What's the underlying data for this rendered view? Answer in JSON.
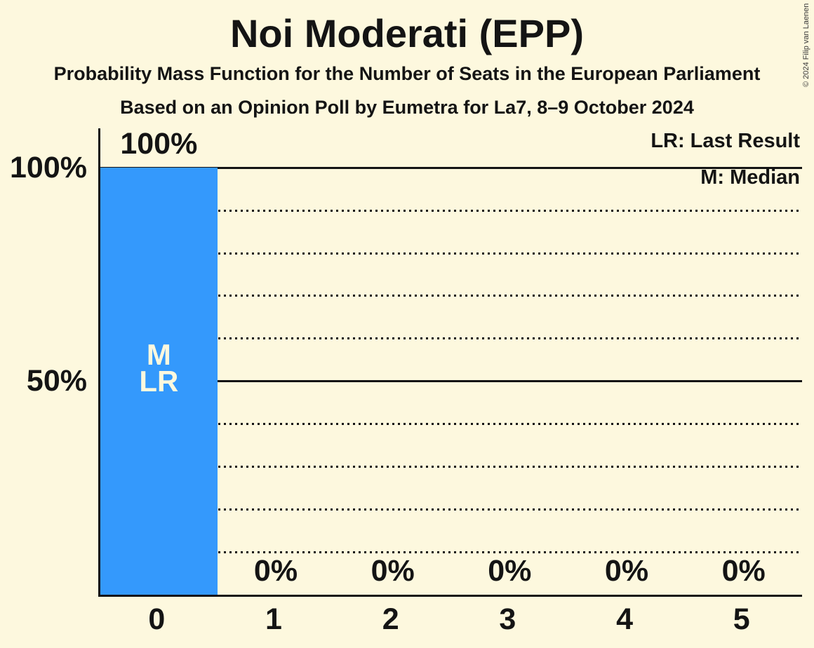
{
  "title": "Noi Moderati (EPP)",
  "subtitle": "Probability Mass Function for the Number of Seats in the European Parliament",
  "source_line": "Based on an Opinion Poll by Eumetra for La7, 8–9 October 2024",
  "copyright": "© 2024 Filip van Laenen",
  "legend": {
    "last_result": "LR: Last Result",
    "median": "M: Median"
  },
  "colors": {
    "background": "#FDF8DE",
    "bar": "#3499FC",
    "text": "#141414"
  },
  "chart_data": {
    "type": "bar",
    "title": "Noi Moderati (EPP)",
    "categories": [
      "0",
      "1",
      "2",
      "3",
      "4",
      "5"
    ],
    "values": [
      100,
      0,
      0,
      0,
      0,
      0
    ],
    "value_labels": [
      "100%",
      "0%",
      "0%",
      "0%",
      "0%",
      "0%"
    ],
    "xlabel": "",
    "ylabel": "",
    "ylim": [
      0,
      109
    ],
    "y_ticks": [
      {
        "pct": 100,
        "label": "100%"
      },
      {
        "pct": 50,
        "label": "50%"
      }
    ],
    "gridlines": {
      "solid_pct": [
        100,
        50
      ],
      "dotted_pct": [
        90,
        80,
        70,
        60,
        40,
        30,
        20,
        10
      ]
    },
    "legend_position": "top-right",
    "median_category": "0",
    "last_result_category": "0",
    "highlight": {
      "category_index": 0,
      "labels": [
        "M",
        "LR"
      ]
    }
  }
}
